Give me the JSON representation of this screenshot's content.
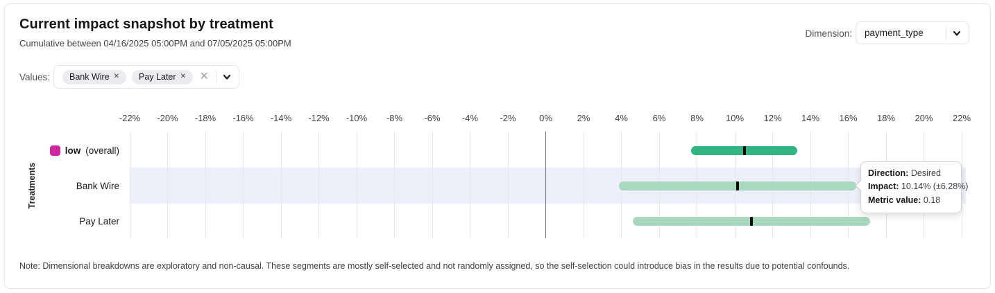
{
  "header": {
    "title": "Current impact snapshot by treatment",
    "subtitle": "Cumulative between 04/16/2025 05:00PM and 07/05/2025 05:00PM",
    "dimension_label": "Dimension:",
    "dimension_value": "payment_type"
  },
  "filters": {
    "label": "Values:",
    "chips": [
      {
        "label": "Bank Wire",
        "remove_icon": "✕"
      },
      {
        "label": "Pay Later",
        "remove_icon": "✕"
      }
    ],
    "clear_icon": "✕"
  },
  "chart_data": {
    "type": "bar",
    "subtype": "horizontal-interval",
    "ylabel": "Treatments",
    "axis": {
      "min": -22,
      "max": 22,
      "step": 2,
      "unit": "%",
      "ticks": [
        "-22%",
        "-20%",
        "-18%",
        "-16%",
        "-14%",
        "-12%",
        "-10%",
        "-8%",
        "-6%",
        "-4%",
        "-2%",
        "0%",
        "2%",
        "4%",
        "6%",
        "8%",
        "10%",
        "12%",
        "14%",
        "16%",
        "18%",
        "20%",
        "22%"
      ]
    },
    "rows": [
      {
        "label": "low",
        "label_suffix": "(overall)",
        "swatch_color": "#cc26a0",
        "impact": 10.5,
        "ci": 2.8,
        "bar_color": "#32b583",
        "marker_color": "#0a0a0a",
        "highlighted": false
      },
      {
        "label": "Bank Wire",
        "impact": 10.14,
        "ci": 6.28,
        "bar_color": "#a8d9be",
        "marker_color": "#0a0a0a",
        "highlighted": true
      },
      {
        "label": "Pay Later",
        "impact": 10.87,
        "ci": 6.28,
        "bar_color": "#a8d9be",
        "marker_color": "#0a0a0a",
        "highlighted": false
      }
    ],
    "highlight_band_color": "#edeffb",
    "zero_line_color": "#71717a",
    "grid": true
  },
  "tooltip": {
    "rows": [
      {
        "label": "Direction:",
        "value": "Desired"
      },
      {
        "label": "Impact:",
        "value": "10.14% (±6.28%)"
      },
      {
        "label": "Metric value:",
        "value": "0.18"
      }
    ]
  },
  "note": "Note: Dimensional breakdowns are exploratory and non-causal. These segments are mostly self-selected and not randomly assigned, so the self-selection could introduce bias in the results due to potential confounds."
}
